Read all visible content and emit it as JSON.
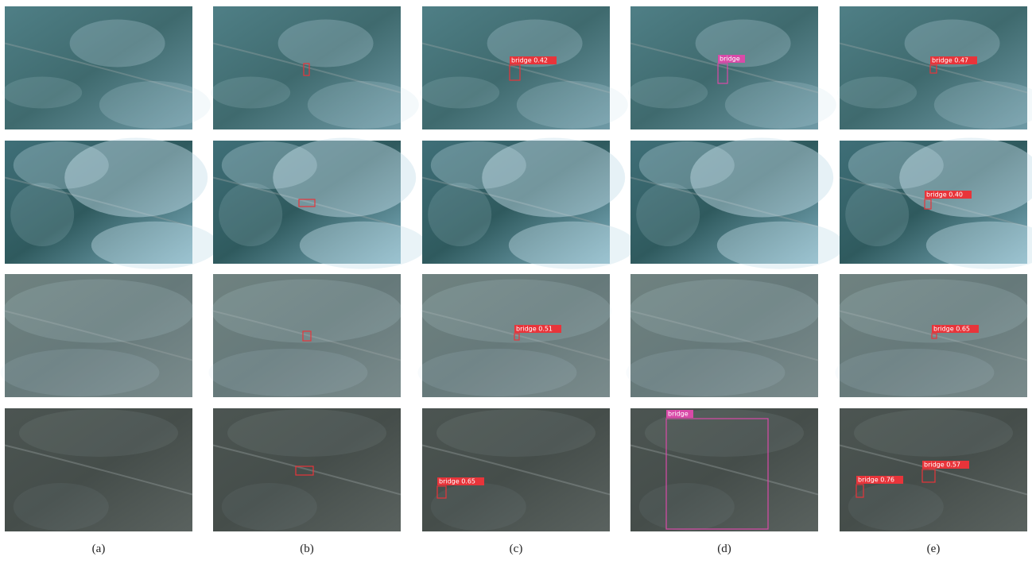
{
  "figure": {
    "captions": [
      "(a)",
      "(b)",
      "(c)",
      "(d)",
      "(e)"
    ],
    "detection_labels": [
      "bridge 0.42",
      "bridge",
      "bridge 0.47",
      "bridge 0.40",
      "bridge 0.51",
      "bridge 0.65",
      "bridge 0.65",
      "bridge",
      "bridge 0.76",
      "bridge 0.57"
    ]
  }
}
